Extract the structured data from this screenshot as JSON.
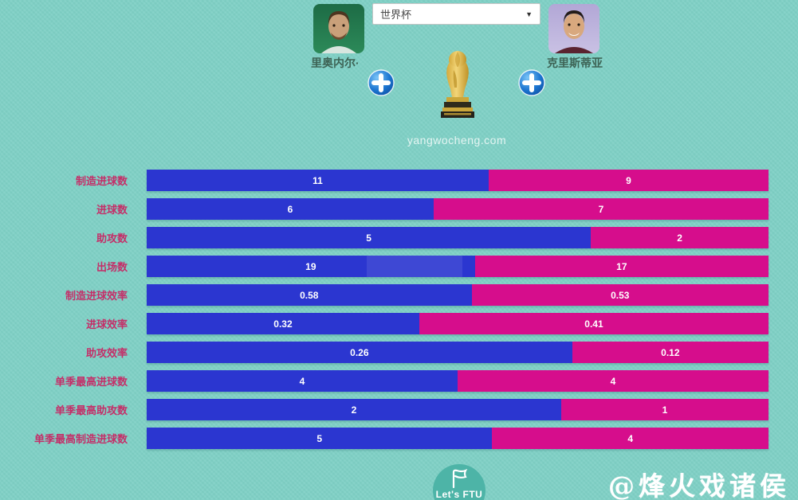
{
  "header": {
    "left_player": {
      "name": "里奥内尔·"
    },
    "right_player": {
      "name": "克里斯蒂亚"
    },
    "competition_select": {
      "value": "世界杯",
      "arrow": "▼"
    },
    "site_text": "yangwocheng.com"
  },
  "chart_data": {
    "type": "bar",
    "subtype": "horizontal-paired-stacked-comparison",
    "legend": [
      "里奥内尔·",
      "克里斯蒂亚"
    ],
    "colors": {
      "left_bar": "#2b36d0",
      "right_bar": "#d60d8c",
      "label": "#c42e68"
    },
    "rows": [
      {
        "label": "制造进球数",
        "left": "11",
        "right": "9"
      },
      {
        "label": "进球数",
        "left": "6",
        "right": "7"
      },
      {
        "label": "助攻数",
        "left": "5",
        "right": "2"
      },
      {
        "label": "出场数",
        "left": "19",
        "right": "17"
      },
      {
        "label": "制造进球效率",
        "left": "0.58",
        "right": "0.53"
      },
      {
        "label": "进球效率",
        "left": "0.32",
        "right": "0.41"
      },
      {
        "label": "助攻效率",
        "left": "0.26",
        "right": "0.12"
      },
      {
        "label": "单季最高进球数",
        "left": "4",
        "right": "4"
      },
      {
        "label": "单季最高助攻数",
        "left": "2",
        "right": "1"
      },
      {
        "label": "单季最高制造进球数",
        "left": "5",
        "right": "4"
      }
    ]
  },
  "footer": {
    "logo_text": "Let's FTU",
    "watermark": "@烽火戏诸侯"
  }
}
